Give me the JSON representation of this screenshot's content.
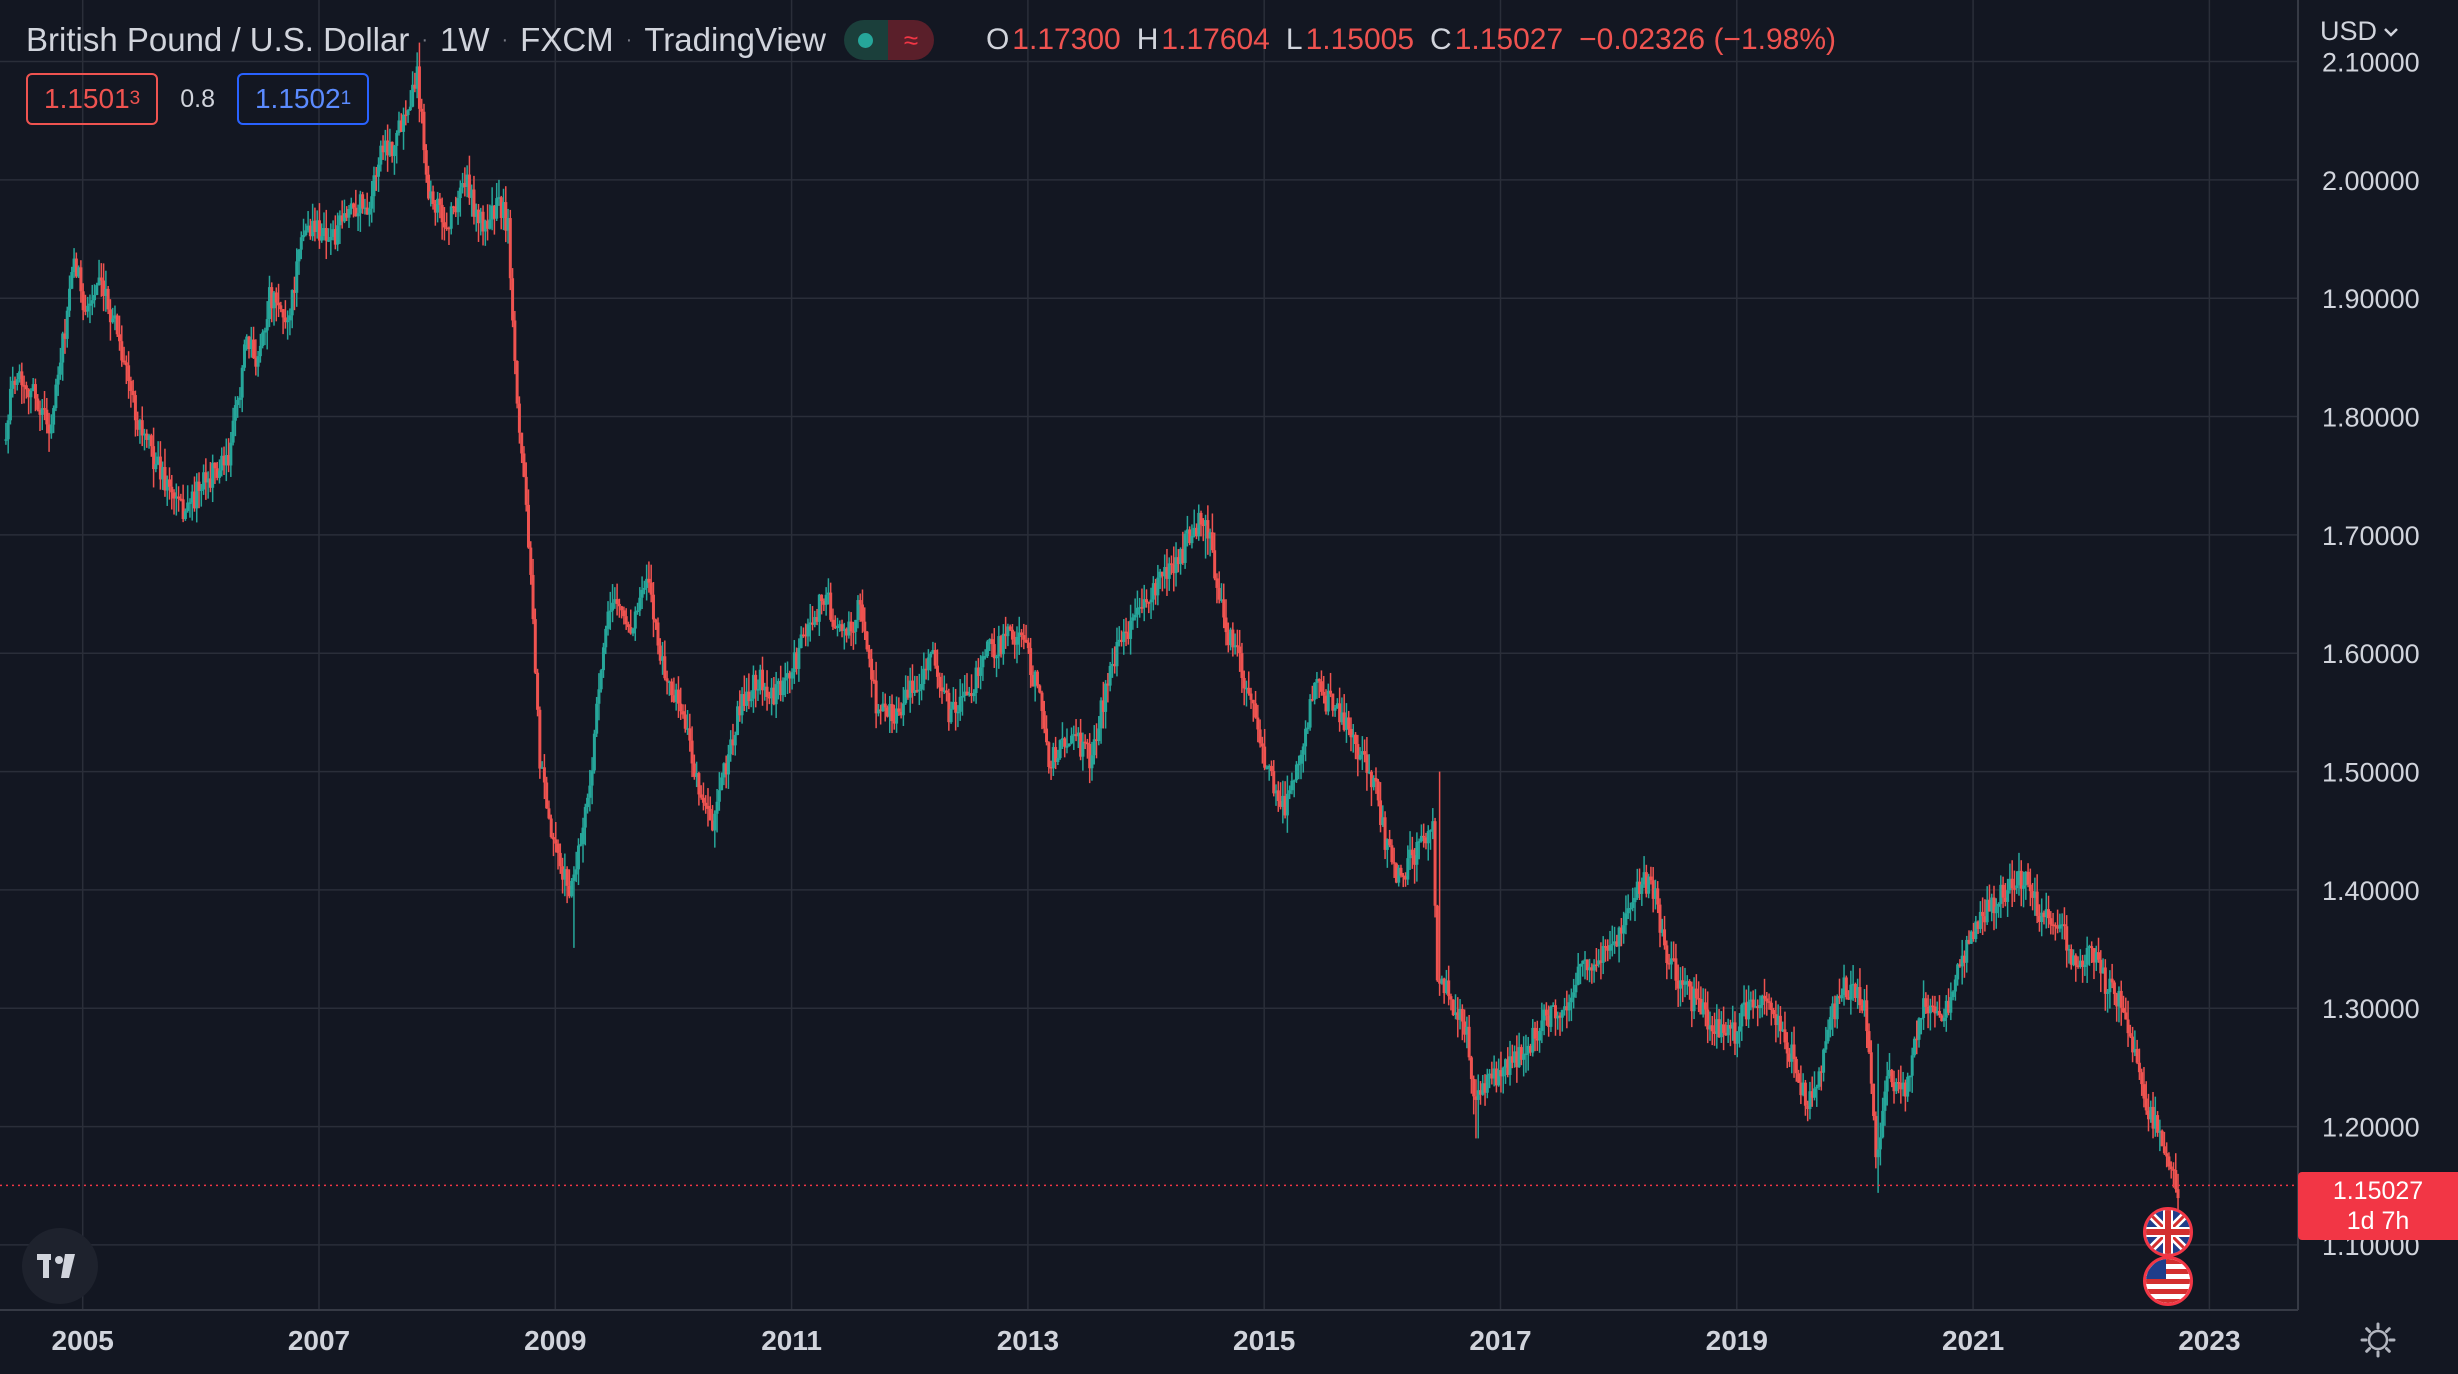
{
  "header": {
    "symbol": "British Pound / U.S. Dollar",
    "interval": "1W",
    "exchange": "FXCM",
    "source": "TradingView",
    "ohlc": {
      "o_label": "O",
      "o": "1.17300",
      "h_label": "H",
      "h": "1.17604",
      "l_label": "L",
      "l": "1.15005",
      "c_label": "C",
      "c": "1.15027",
      "change": "−0.02326 (−1.98%)"
    }
  },
  "trade": {
    "sell_price_main": "1.1501",
    "sell_price_sup": "3",
    "spread": "0.8",
    "buy_price_main": "1.1502",
    "buy_price_sup": "1"
  },
  "price_scale": {
    "currency": "USD"
  },
  "last_price": {
    "value": "1.15027",
    "countdown": "1d 7h"
  },
  "icons": {
    "logo": "tradingview-logo-icon",
    "flag_base": "uk-flag-icon",
    "flag_quote": "us-flag-icon",
    "settings": "gear-icon",
    "chevron": "chevron-down-icon"
  },
  "colors": {
    "background": "#131722",
    "grid": "#2a2e39",
    "up": "#26a69a",
    "down": "#ef5350",
    "last_price": "#f23645",
    "text": "#d1d4dc"
  },
  "chart_data": {
    "type": "candlestick",
    "x_ticks": [
      "2005",
      "2007",
      "2009",
      "2011",
      "2013",
      "2015",
      "2017",
      "2019",
      "2021",
      "2023"
    ],
    "y_ticks": [
      "2.10000",
      "2.00000",
      "1.90000",
      "1.80000",
      "1.70000",
      "1.60000",
      "1.50000",
      "1.40000",
      "1.30000",
      "1.20000",
      "1.10000"
    ],
    "xlim": [
      2004.3,
      2023.75
    ],
    "ylim": [
      1.045,
      2.152
    ],
    "grid": true,
    "close_path": [
      [
        2004.35,
        1.78
      ],
      [
        2004.45,
        1.84
      ],
      [
        2004.6,
        1.82
      ],
      [
        2004.75,
        1.79
      ],
      [
        2004.85,
        1.86
      ],
      [
        2004.95,
        1.93
      ],
      [
        2005.05,
        1.89
      ],
      [
        2005.15,
        1.91
      ],
      [
        2005.3,
        1.88
      ],
      [
        2005.45,
        1.81
      ],
      [
        2005.55,
        1.78
      ],
      [
        2005.65,
        1.76
      ],
      [
        2005.75,
        1.74
      ],
      [
        2005.85,
        1.72
      ],
      [
        2005.95,
        1.73
      ],
      [
        2006.1,
        1.75
      ],
      [
        2006.25,
        1.76
      ],
      [
        2006.4,
        1.86
      ],
      [
        2006.5,
        1.85
      ],
      [
        2006.6,
        1.9
      ],
      [
        2006.75,
        1.88
      ],
      [
        2006.9,
        1.96
      ],
      [
        2007.0,
        1.96
      ],
      [
        2007.15,
        1.95
      ],
      [
        2007.3,
        1.98
      ],
      [
        2007.45,
        1.98
      ],
      [
        2007.55,
        2.03
      ],
      [
        2007.65,
        2.03
      ],
      [
        2007.75,
        2.06
      ],
      [
        2007.85,
        2.09
      ],
      [
        2007.95,
        1.99
      ],
      [
        2008.1,
        1.96
      ],
      [
        2008.25,
        2.0
      ],
      [
        2008.4,
        1.96
      ],
      [
        2008.55,
        1.98
      ],
      [
        2008.62,
        1.96
      ],
      [
        2008.7,
        1.81
      ],
      [
        2008.78,
        1.72
      ],
      [
        2008.88,
        1.52
      ],
      [
        2008.95,
        1.46
      ],
      [
        2009.05,
        1.42
      ],
      [
        2009.15,
        1.4
      ],
      [
        2009.3,
        1.48
      ],
      [
        2009.4,
        1.58
      ],
      [
        2009.5,
        1.65
      ],
      [
        2009.65,
        1.62
      ],
      [
        2009.8,
        1.66
      ],
      [
        2009.95,
        1.58
      ],
      [
        2010.1,
        1.55
      ],
      [
        2010.2,
        1.5
      ],
      [
        2010.35,
        1.45
      ],
      [
        2010.45,
        1.5
      ],
      [
        2010.6,
        1.56
      ],
      [
        2010.75,
        1.58
      ],
      [
        2010.85,
        1.56
      ],
      [
        2011.0,
        1.58
      ],
      [
        2011.15,
        1.62
      ],
      [
        2011.3,
        1.65
      ],
      [
        2011.45,
        1.61
      ],
      [
        2011.6,
        1.64
      ],
      [
        2011.75,
        1.55
      ],
      [
        2011.9,
        1.55
      ],
      [
        2012.05,
        1.57
      ],
      [
        2012.2,
        1.6
      ],
      [
        2012.35,
        1.55
      ],
      [
        2012.5,
        1.56
      ],
      [
        2012.65,
        1.6
      ],
      [
        2012.8,
        1.61
      ],
      [
        2012.95,
        1.62
      ],
      [
        2013.1,
        1.57
      ],
      [
        2013.2,
        1.51
      ],
      [
        2013.4,
        1.53
      ],
      [
        2013.55,
        1.51
      ],
      [
        2013.7,
        1.58
      ],
      [
        2013.85,
        1.62
      ],
      [
        2014.0,
        1.64
      ],
      [
        2014.15,
        1.66
      ],
      [
        2014.3,
        1.68
      ],
      [
        2014.45,
        1.71
      ],
      [
        2014.55,
        1.7
      ],
      [
        2014.7,
        1.62
      ],
      [
        2014.85,
        1.58
      ],
      [
        2015.0,
        1.52
      ],
      [
        2015.1,
        1.49
      ],
      [
        2015.2,
        1.47
      ],
      [
        2015.35,
        1.53
      ],
      [
        2015.45,
        1.57
      ],
      [
        2015.55,
        1.56
      ],
      [
        2015.7,
        1.54
      ],
      [
        2015.85,
        1.51
      ],
      [
        2015.95,
        1.49
      ],
      [
        2016.05,
        1.44
      ],
      [
        2016.15,
        1.41
      ],
      [
        2016.3,
        1.43
      ],
      [
        2016.45,
        1.46
      ],
      [
        2016.48,
        1.33
      ],
      [
        2016.6,
        1.31
      ],
      [
        2016.75,
        1.27
      ],
      [
        2016.8,
        1.22
      ],
      [
        2016.95,
        1.24
      ],
      [
        2017.1,
        1.25
      ],
      [
        2017.25,
        1.27
      ],
      [
        2017.4,
        1.29
      ],
      [
        2017.55,
        1.3
      ],
      [
        2017.7,
        1.33
      ],
      [
        2017.85,
        1.34
      ],
      [
        2018.0,
        1.36
      ],
      [
        2018.15,
        1.4
      ],
      [
        2018.3,
        1.41
      ],
      [
        2018.4,
        1.35
      ],
      [
        2018.55,
        1.32
      ],
      [
        2018.7,
        1.3
      ],
      [
        2018.85,
        1.28
      ],
      [
        2019.0,
        1.28
      ],
      [
        2019.15,
        1.31
      ],
      [
        2019.3,
        1.3
      ],
      [
        2019.45,
        1.27
      ],
      [
        2019.6,
        1.22
      ],
      [
        2019.7,
        1.23
      ],
      [
        2019.8,
        1.29
      ],
      [
        2019.95,
        1.32
      ],
      [
        2020.1,
        1.3
      ],
      [
        2020.2,
        1.18
      ],
      [
        2020.3,
        1.24
      ],
      [
        2020.45,
        1.23
      ],
      [
        2020.6,
        1.3
      ],
      [
        2020.75,
        1.29
      ],
      [
        2020.9,
        1.33
      ],
      [
        2021.05,
        1.37
      ],
      [
        2021.2,
        1.39
      ],
      [
        2021.35,
        1.4
      ],
      [
        2021.45,
        1.41
      ],
      [
        2021.6,
        1.38
      ],
      [
        2021.75,
        1.37
      ],
      [
        2021.9,
        1.33
      ],
      [
        2022.0,
        1.35
      ],
      [
        2022.15,
        1.32
      ],
      [
        2022.3,
        1.3
      ],
      [
        2022.4,
        1.25
      ],
      [
        2022.5,
        1.21
      ],
      [
        2022.6,
        1.2
      ],
      [
        2022.7,
        1.17
      ],
      [
        2022.75,
        1.1503
      ]
    ],
    "events": [
      {
        "x": 2007.85,
        "high": 2.116,
        "low": 2.06
      },
      {
        "x": 2009.15,
        "high": 1.42,
        "low": 1.351
      },
      {
        "x": 2014.5,
        "high": 1.717,
        "low": 1.68
      },
      {
        "x": 2016.48,
        "high": 1.5,
        "low": 1.32
      },
      {
        "x": 2016.8,
        "high": 1.24,
        "low": 1.19
      },
      {
        "x": 2020.2,
        "high": 1.27,
        "low": 1.144
      }
    ],
    "last_price_line": 1.15027
  }
}
